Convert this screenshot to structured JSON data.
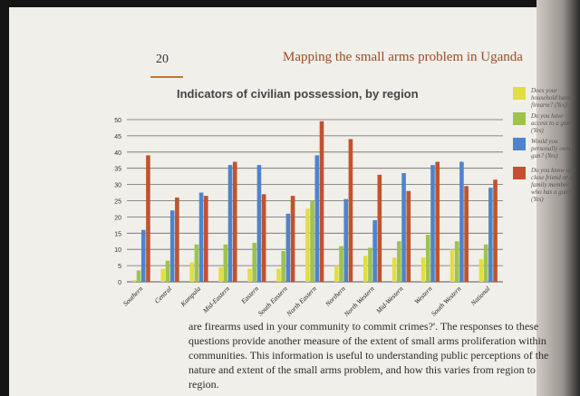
{
  "page": {
    "number": "20",
    "running_head": "Mapping the small arms problem in Uganda"
  },
  "colors": {
    "page_rule": "#c9772b",
    "running_head": "#9c4b22",
    "series": [
      "#e2de41",
      "#9dc34d",
      "#4d84cc",
      "#c2522e"
    ]
  },
  "chart_data": {
    "type": "bar",
    "title": "Indicators of civilian possession, by region",
    "categories": [
      "Southern",
      "Central",
      "Kampala",
      "Mid-Eastern",
      "Eastern",
      "South Eastern",
      "North Eastern",
      "Northern",
      "North Western",
      "Mid-Western",
      "Western",
      "South Western",
      "National"
    ],
    "series": [
      {
        "name": "Does your household have a firearm? (Yes)",
        "values": [
          0.5,
          4,
          6,
          4.5,
          4,
          4,
          22.5,
          5,
          8,
          7.5,
          7.5,
          10,
          7
        ]
      },
      {
        "name": "Do you have access to a gun? (Yes)",
        "values": [
          3.5,
          6.5,
          11.5,
          11.5,
          12,
          9.5,
          25,
          11,
          10.5,
          12.5,
          14.5,
          12.5,
          11.5
        ]
      },
      {
        "name": "Would you personally own a gun? (Yes)",
        "values": [
          16,
          22,
          27.5,
          36,
          36,
          21,
          39,
          25.5,
          19,
          33.5,
          36,
          37,
          29
        ]
      },
      {
        "name": "Do you know of a close friend or a family member who has a gun? (Yes)",
        "values": [
          39,
          26,
          26.5,
          37,
          27,
          26.5,
          49.5,
          44,
          33,
          28,
          37,
          29.5,
          31.5
        ]
      }
    ],
    "ylim": [
      0,
      50
    ],
    "yticks": [
      0,
      5,
      10,
      15,
      20,
      25,
      30,
      35,
      40,
      45,
      50
    ],
    "grid": true,
    "legend_position": "right"
  },
  "legend": {
    "items": [
      {
        "label": "Does your household have a firearm? (Yes)"
      },
      {
        "label": "Do you have access to a gun? (Yes)"
      },
      {
        "label": "Would you personally own a gun? (Yes)"
      },
      {
        "label": "Do you know of a close friend or a family member who has a gun? (Yes)"
      }
    ]
  },
  "body_text": "are firearms used in your community to commit crimes?'. The responses to these questions provide another measure of the extent of small arms proliferation within communities. This information is useful to understanding public perceptions of the nature and extent of the small arms problem, and how this varies from region to region."
}
